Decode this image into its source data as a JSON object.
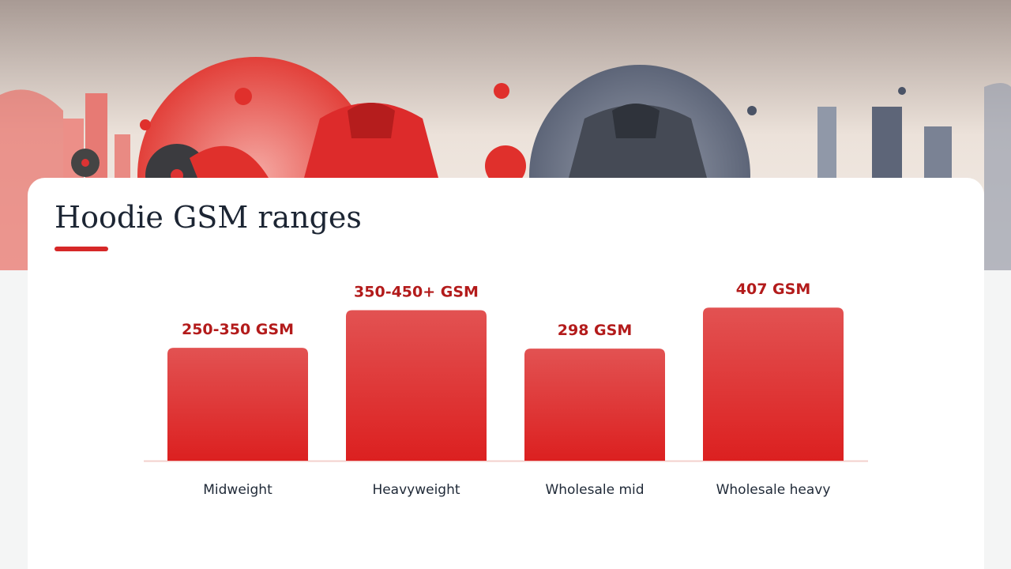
{
  "chart_data": {
    "type": "bar",
    "title": "Hoodie GSM ranges",
    "categories": [
      "Midweight",
      "Heavyweight",
      "Wholesale mid",
      "Wholesale heavy"
    ],
    "values": [
      300,
      400,
      298,
      407
    ],
    "value_labels": [
      "250-350 GSM",
      "350-450+ GSM",
      "298 GSM",
      "407 GSM"
    ],
    "color": "#dc2626",
    "ylim": [
      0,
      420
    ]
  }
}
